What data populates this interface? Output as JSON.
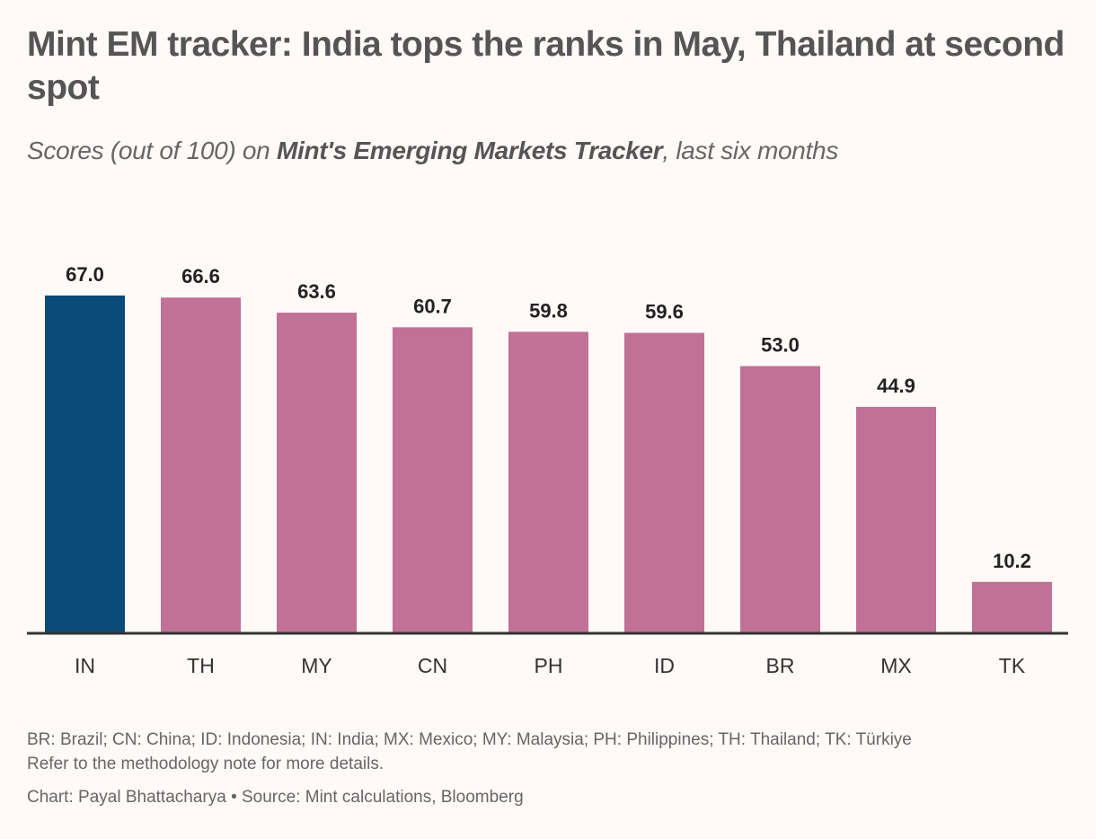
{
  "header": {
    "title": "Mint EM tracker: India tops the ranks in May, Thailand at second spot",
    "subtitle_before": "Scores (out of 100) on ",
    "subtitle_emphasis": "Mint's Emerging Markets Tracker",
    "subtitle_after": ", last six months"
  },
  "chart_data": {
    "type": "bar",
    "title": "Mint EM tracker: India tops the ranks in May, Thailand at second spot",
    "subtitle": "Scores (out of 100) on Mint's Emerging Markets Tracker, last six months",
    "xlabel": "",
    "ylabel": "",
    "categories": [
      "IN",
      "TH",
      "MY",
      "CN",
      "PH",
      "ID",
      "BR",
      "MX",
      "TK"
    ],
    "values": [
      67.0,
      66.6,
      63.6,
      60.7,
      59.8,
      59.6,
      53.0,
      44.9,
      10.2
    ],
    "value_labels": [
      "67.0",
      "66.6",
      "63.6",
      "60.7",
      "59.8",
      "59.6",
      "53.0",
      "44.9",
      "10.2"
    ],
    "highlight_category": "IN",
    "ylim": [
      0,
      67
    ],
    "grid": false,
    "colors": {
      "highlight": "#0c4a79",
      "default": "#c17096",
      "axis": "#333333"
    }
  },
  "footer": {
    "legend_note": "BR: Brazil; CN: China; ID: Indonesia; IN: India; MX: Mexico; MY: Malaysia; PH: Philippines; TH: Thailand; TK: Türkiye",
    "methodology_note": "Refer to the methodology note for more details.",
    "credit": "Chart: Payal Bhattacharya • Source: Mint calculations, Bloomberg"
  }
}
